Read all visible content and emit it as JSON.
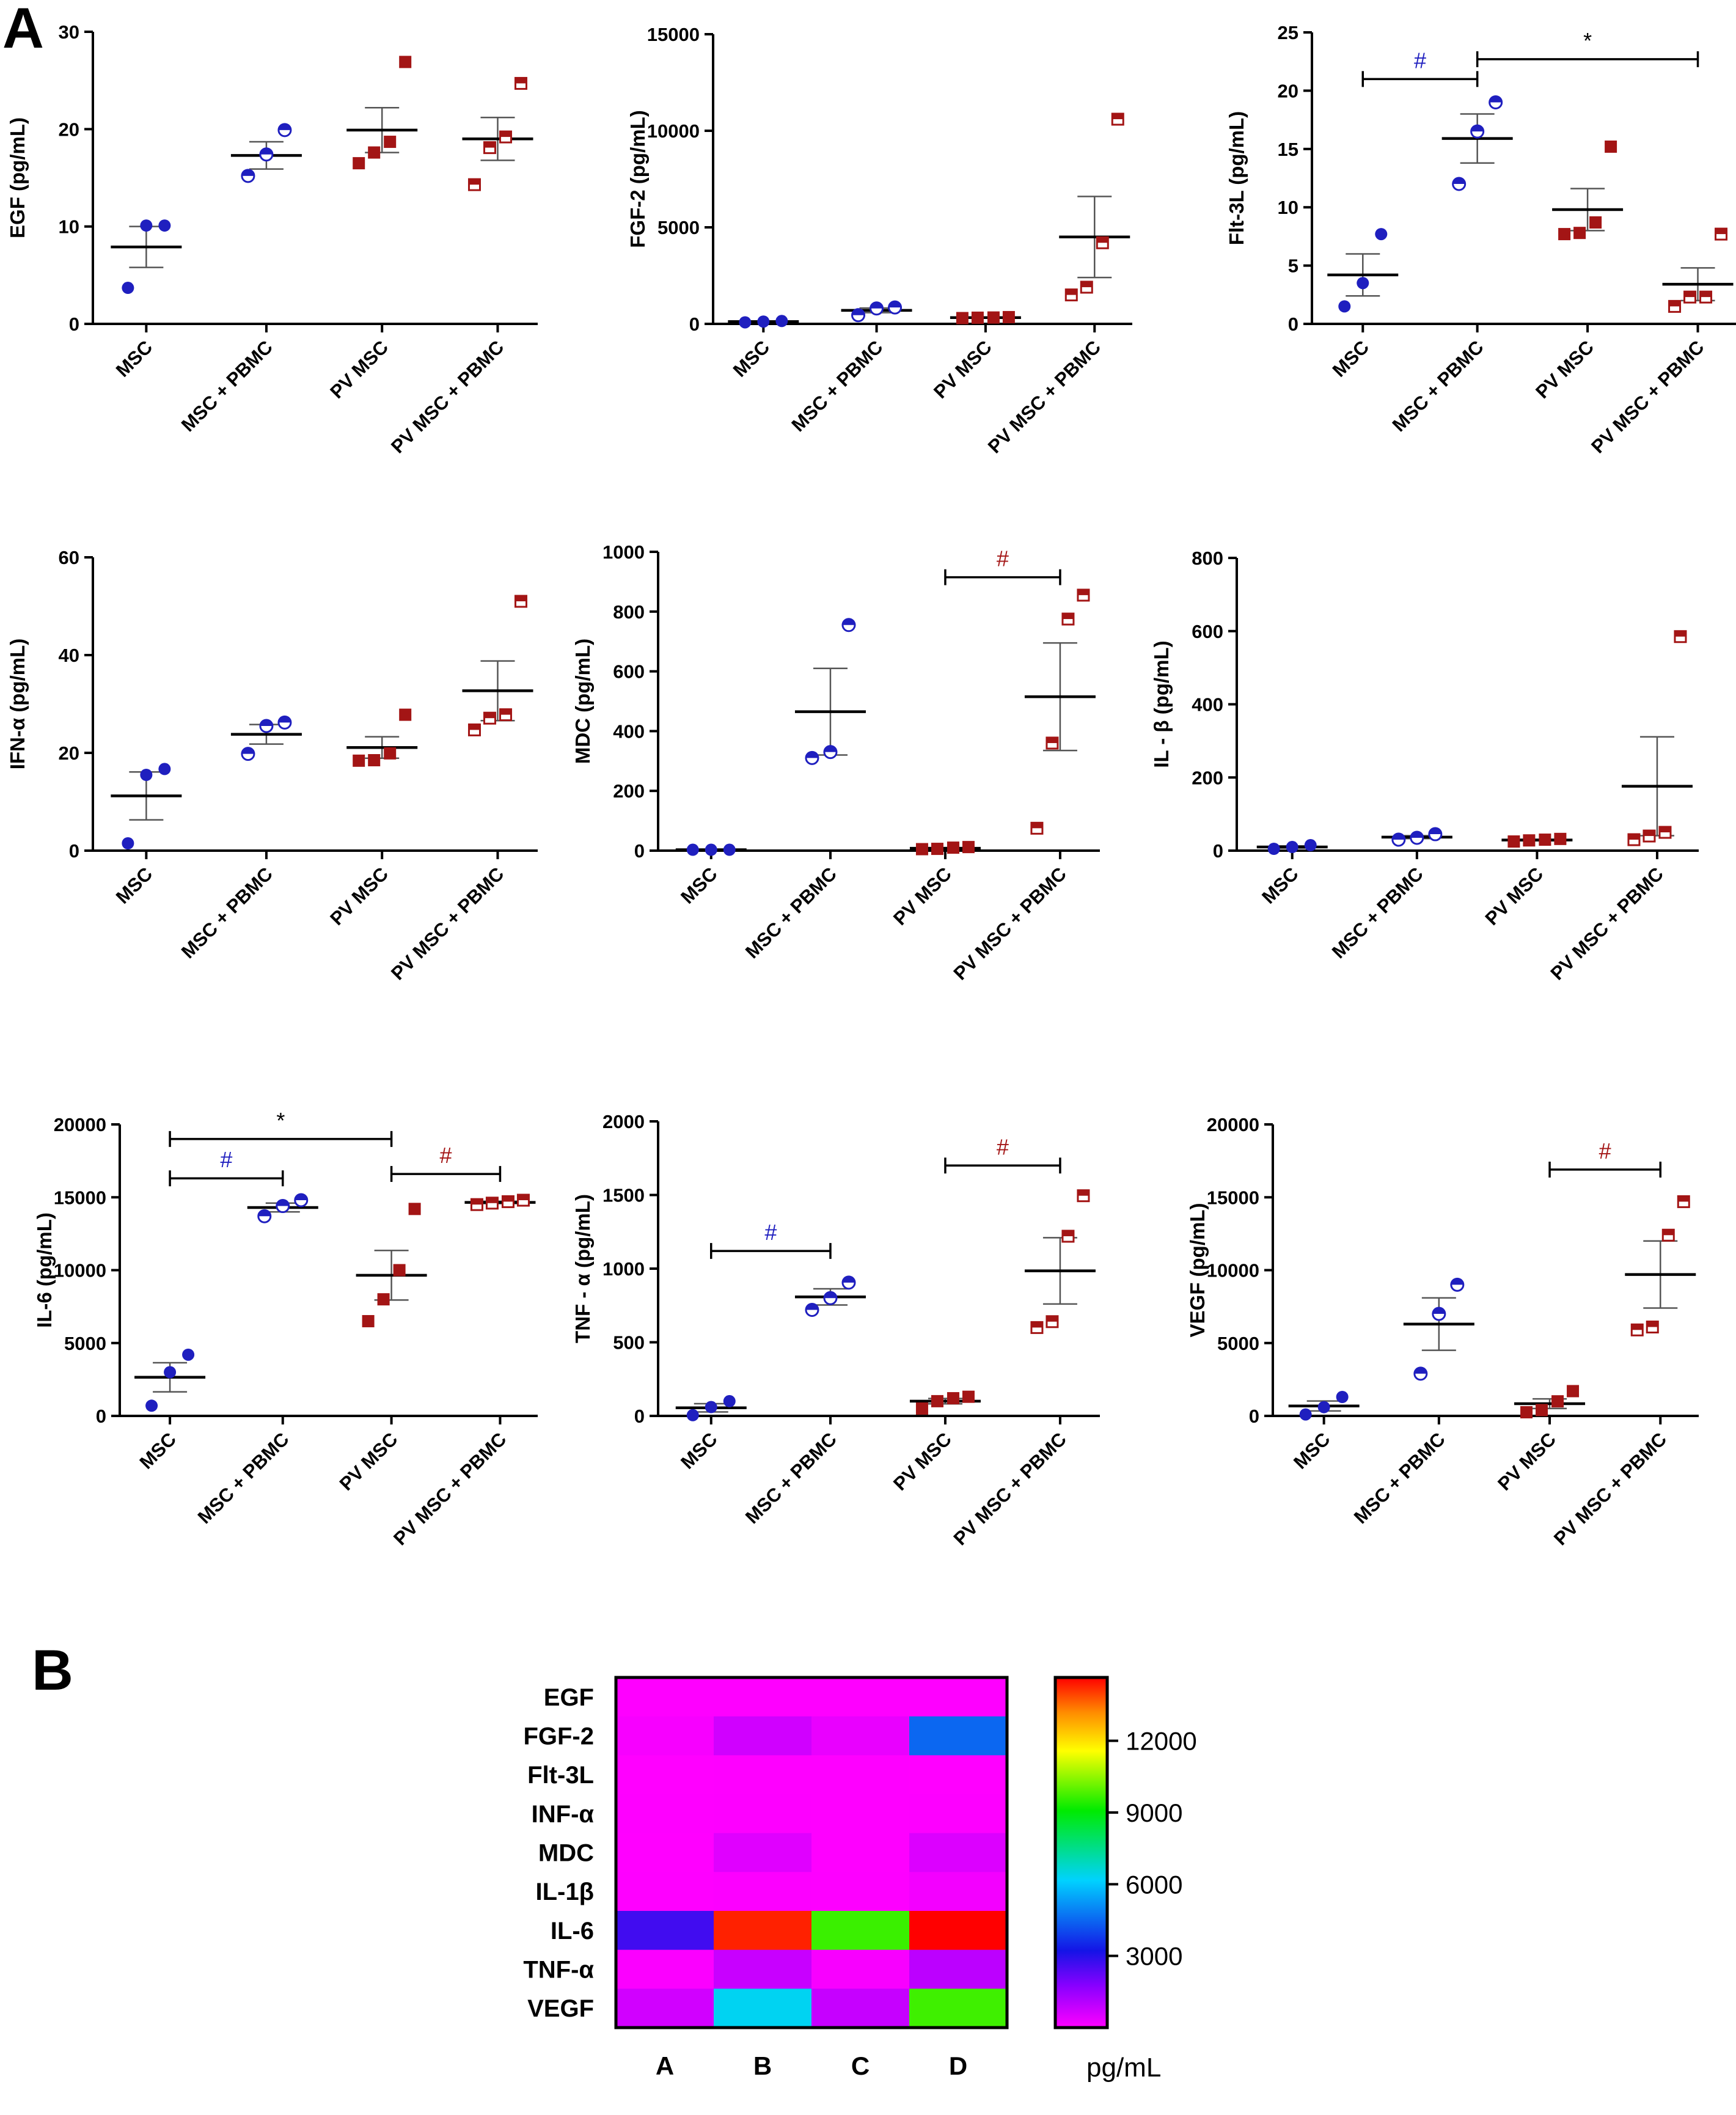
{
  "panel_labels": {
    "a": "A",
    "b": "B"
  },
  "chart_data": [
    {
      "type": "scatter",
      "id": "egf",
      "ylabel": "EGF (pg/mL)",
      "ylim": [
        0,
        30
      ],
      "yticks": [
        0,
        10,
        20,
        30
      ],
      "ytick_labels": [
        "0",
        "10",
        "20",
        "30"
      ],
      "categories": [
        "MSC",
        "MSC + PBMC",
        "PV MSC",
        "PV MSC + PBMC"
      ],
      "series": [
        {
          "name": "MSC",
          "marker": "circle-filled",
          "color": "#1f1fbf",
          "points": [
            3.7,
            10.1,
            10.1
          ],
          "mean": 7.9,
          "sem": 2.1
        },
        {
          "name": "MSC + PBMC",
          "marker": "circle-half",
          "color": "#1f1fbf",
          "points": [
            15.2,
            17.4,
            19.9
          ],
          "mean": 17.3,
          "sem": 1.4
        },
        {
          "name": "PV MSC",
          "marker": "square-filled",
          "color": "#a31515",
          "points": [
            16.5,
            17.6,
            18.7,
            26.9
          ],
          "mean": 19.9,
          "sem": 2.3
        },
        {
          "name": "PV MSC + PBMC",
          "marker": "square-half",
          "color": "#a31515",
          "points": [
            14.3,
            18.1,
            19.2,
            24.7
          ],
          "mean": 19.0,
          "sem": 2.2
        }
      ],
      "annotations": []
    },
    {
      "type": "scatter",
      "id": "fgf2",
      "ylabel": "FGF-2 (pg/mL)",
      "ylim": [
        0,
        15000
      ],
      "yticks": [
        0,
        5000,
        10000,
        15000
      ],
      "ytick_labels": [
        "0",
        "5000",
        "10000",
        "15000"
      ],
      "categories": [
        "MSC",
        "MSC + PBMC",
        "PV MSC",
        "PV MSC + PBMC"
      ],
      "series": [
        {
          "name": "MSC",
          "marker": "circle-filled",
          "color": "#1f1fbf",
          "points": [
            80,
            120,
            150
          ],
          "mean": 120,
          "sem": 25
        },
        {
          "name": "MSC + PBMC",
          "marker": "circle-half",
          "color": "#1f1fbf",
          "points": [
            450,
            800,
            850
          ],
          "mean": 700,
          "sem": 120
        },
        {
          "name": "PV MSC",
          "marker": "square-filled",
          "color": "#a31515",
          "points": [
            300,
            320,
            330,
            350
          ],
          "mean": 325,
          "sem": 15
        },
        {
          "name": "PV MSC + PBMC",
          "marker": "square-half",
          "color": "#a31515",
          "points": [
            1500,
            1900,
            4200,
            10600
          ],
          "mean": 4500,
          "sem": 2100
        }
      ],
      "annotations": []
    },
    {
      "type": "scatter",
      "id": "flt3l",
      "ylabel": "Flt-3L (pg/mL)",
      "ylim": [
        0,
        25
      ],
      "yticks": [
        0,
        5,
        10,
        15,
        20,
        25
      ],
      "ytick_labels": [
        "0",
        "5",
        "10",
        "15",
        "20",
        "25"
      ],
      "categories": [
        "MSC",
        "MSC + PBMC",
        "PV MSC",
        "PV MSC + PBMC"
      ],
      "series": [
        {
          "name": "MSC",
          "marker": "circle-filled",
          "color": "#1f1fbf",
          "points": [
            1.5,
            3.5,
            7.7
          ],
          "mean": 4.2,
          "sem": 1.8
        },
        {
          "name": "MSC + PBMC",
          "marker": "circle-half",
          "color": "#1f1fbf",
          "points": [
            12.0,
            16.5,
            19.0
          ],
          "mean": 15.9,
          "sem": 2.1
        },
        {
          "name": "PV MSC",
          "marker": "square-filled",
          "color": "#a31515",
          "points": [
            7.7,
            7.8,
            8.7,
            15.2
          ],
          "mean": 9.8,
          "sem": 1.8
        },
        {
          "name": "PV MSC + PBMC",
          "marker": "square-half",
          "color": "#a31515",
          "points": [
            1.5,
            2.3,
            2.3,
            7.7
          ],
          "mean": 3.4,
          "sem": 1.4
        }
      ],
      "annotations": [
        {
          "from": 0,
          "to": 1,
          "y": 21,
          "label": "#",
          "color": "#1f1fbf"
        },
        {
          "from": 1,
          "to": 3,
          "y": 22.7,
          "label": "*",
          "color": "#000000"
        }
      ]
    },
    {
      "type": "scatter",
      "id": "ifna",
      "ylabel": "IFN-α (pg/mL)",
      "ylim": [
        0,
        60
      ],
      "yticks": [
        0,
        20,
        40,
        60
      ],
      "ytick_labels": [
        "0",
        "20",
        "40",
        "60"
      ],
      "categories": [
        "MSC",
        "MSC + PBMC",
        "PV MSC",
        "PV MSC + PBMC"
      ],
      "series": [
        {
          "name": "MSC",
          "marker": "circle-filled",
          "color": "#1f1fbf",
          "points": [
            1.5,
            15.5,
            16.7
          ],
          "mean": 11.2,
          "sem": 4.9
        },
        {
          "name": "MSC + PBMC",
          "marker": "circle-half",
          "color": "#1f1fbf",
          "points": [
            19.8,
            25.5,
            26.2
          ],
          "mean": 23.8,
          "sem": 2.0
        },
        {
          "name": "PV MSC",
          "marker": "square-filled",
          "color": "#a31515",
          "points": [
            18.4,
            18.5,
            19.9,
            27.8
          ],
          "mean": 21.1,
          "sem": 2.2
        },
        {
          "name": "PV MSC + PBMC",
          "marker": "square-half",
          "color": "#a31515",
          "points": [
            24.7,
            27.1,
            27.8,
            51.0
          ],
          "mean": 32.7,
          "sem": 6.1
        }
      ],
      "annotations": []
    },
    {
      "type": "scatter",
      "id": "mdc",
      "ylabel": "MDC (pg/mL)",
      "ylim": [
        0,
        1000
      ],
      "yticks": [
        0,
        200,
        400,
        600,
        800,
        1000
      ],
      "ytick_labels": [
        "0",
        "200",
        "400",
        "600",
        "800",
        "1000"
      ],
      "categories": [
        "MSC",
        "MSC + PBMC",
        "PV MSC",
        "PV MSC + PBMC"
      ],
      "series": [
        {
          "name": "MSC",
          "marker": "circle-filled",
          "color": "#1f1fbf",
          "points": [
            3,
            3,
            3
          ],
          "mean": 3,
          "sem": 0
        },
        {
          "name": "MSC + PBMC",
          "marker": "circle-half",
          "color": "#1f1fbf",
          "points": [
            310,
            330,
            755
          ],
          "mean": 465,
          "sem": 145
        },
        {
          "name": "PV MSC",
          "marker": "square-filled",
          "color": "#a31515",
          "points": [
            5,
            6,
            10,
            12
          ],
          "mean": 8,
          "sem": 2
        },
        {
          "name": "PV MSC + PBMC",
          "marker": "square-half",
          "color": "#a31515",
          "points": [
            75,
            360,
            775,
            855
          ],
          "mean": 515,
          "sem": 180
        }
      ],
      "annotations": [
        {
          "from": 2,
          "to": 3,
          "y": 915,
          "label": "#",
          "color": "#a31515"
        }
      ]
    },
    {
      "type": "scatter",
      "id": "il1b",
      "ylabel": "IL - β (pg/mL)",
      "ylim": [
        0,
        800
      ],
      "yticks": [
        0,
        200,
        400,
        600,
        800
      ],
      "ytick_labels": [
        "0",
        "200",
        "400",
        "600",
        "800"
      ],
      "categories": [
        "MSC",
        "MSC + PBMC",
        "PV MSC",
        "PV MSC + PBMC"
      ],
      "series": [
        {
          "name": "MSC",
          "marker": "circle-filled",
          "color": "#1f1fbf",
          "points": [
            5,
            10,
            15
          ],
          "mean": 10,
          "sem": 3
        },
        {
          "name": "MSC + PBMC",
          "marker": "circle-half",
          "color": "#1f1fbf",
          "points": [
            30,
            35,
            45
          ],
          "mean": 37,
          "sem": 4
        },
        {
          "name": "PV MSC",
          "marker": "square-filled",
          "color": "#a31515",
          "points": [
            25,
            28,
            30,
            32
          ],
          "mean": 29,
          "sem": 2
        },
        {
          "name": "PV MSC + PBMC",
          "marker": "square-half",
          "color": "#a31515",
          "points": [
            30,
            40,
            50,
            585
          ],
          "mean": 176,
          "sem": 135
        }
      ],
      "annotations": []
    },
    {
      "type": "scatter",
      "id": "il6",
      "ylabel": "IL-6 (pg/mL)",
      "ylim": [
        0,
        20000
      ],
      "yticks": [
        0,
        5000,
        10000,
        15000,
        20000
      ],
      "ytick_labels": [
        "0",
        "5000",
        "10000",
        "15000",
        "20000"
      ],
      "categories": [
        "MSC",
        "MSC + PBMC",
        "PV MSC",
        "PV MSC + PBMC"
      ],
      "series": [
        {
          "name": "MSC",
          "marker": "circle-filled",
          "color": "#1f1fbf",
          "points": [
            700,
            3000,
            4200
          ],
          "mean": 2650,
          "sem": 1000
        },
        {
          "name": "MSC + PBMC",
          "marker": "circle-half",
          "color": "#1f1fbf",
          "points": [
            13700,
            14400,
            14800
          ],
          "mean": 14300,
          "sem": 300
        },
        {
          "name": "PV MSC",
          "marker": "square-filled",
          "color": "#a31515",
          "points": [
            6500,
            8000,
            10000,
            14200
          ],
          "mean": 9650,
          "sem": 1700
        },
        {
          "name": "PV MSC + PBMC",
          "marker": "square-half",
          "color": "#a31515",
          "points": [
            14500,
            14600,
            14700,
            14800
          ],
          "mean": 14650,
          "sem": 80
        }
      ],
      "annotations": [
        {
          "from": 0,
          "to": 2,
          "y": 19000,
          "label": "*",
          "color": "#000000"
        },
        {
          "from": 0,
          "to": 1,
          "y": 16300,
          "label": "#",
          "color": "#1f1fbf"
        },
        {
          "from": 2,
          "to": 3,
          "y": 16600,
          "label": "#",
          "color": "#a31515"
        }
      ]
    },
    {
      "type": "scatter",
      "id": "tnfa",
      "ylabel": "TNF - α (pg/mL)",
      "ylim": [
        0,
        2000
      ],
      "yticks": [
        0,
        500,
        1000,
        1500,
        2000
      ],
      "ytick_labels": [
        "0",
        "500",
        "1000",
        "1500",
        "2000"
      ],
      "categories": [
        "MSC",
        "MSC + PBMC",
        "PV MSC",
        "PV MSC + PBMC"
      ],
      "series": [
        {
          "name": "MSC",
          "marker": "circle-filled",
          "color": "#1f1fbf",
          "points": [
            5,
            60,
            100
          ],
          "mean": 55,
          "sem": 28
        },
        {
          "name": "MSC + PBMC",
          "marker": "circle-half",
          "color": "#1f1fbf",
          "points": [
            720,
            800,
            905
          ],
          "mean": 808,
          "sem": 55
        },
        {
          "name": "PV MSC",
          "marker": "square-filled",
          "color": "#a31515",
          "points": [
            50,
            100,
            120,
            130
          ],
          "mean": 100,
          "sem": 18
        },
        {
          "name": "PV MSC + PBMC",
          "marker": "square-half",
          "color": "#a31515",
          "points": [
            600,
            640,
            1220,
            1495
          ],
          "mean": 985,
          "sem": 225
        }
      ],
      "annotations": [
        {
          "from": 0,
          "to": 1,
          "y": 1120,
          "label": "#",
          "color": "#1f1fbf"
        },
        {
          "from": 2,
          "to": 3,
          "y": 1700,
          "label": "#",
          "color": "#a31515"
        }
      ]
    },
    {
      "type": "scatter",
      "id": "vegf",
      "ylabel": "VEGF (pg/mL)",
      "ylim": [
        0,
        20000
      ],
      "yticks": [
        0,
        5000,
        10000,
        15000,
        20000
      ],
      "ytick_labels": [
        "0",
        "5000",
        "10000",
        "15000",
        "20000"
      ],
      "categories": [
        "MSC",
        "MSC + PBMC",
        "PV MSC",
        "PV MSC + PBMC"
      ],
      "series": [
        {
          "name": "MSC",
          "marker": "circle-filled",
          "color": "#1f1fbf",
          "points": [
            100,
            600,
            1300
          ],
          "mean": 680,
          "sem": 340
        },
        {
          "name": "MSC + PBMC",
          "marker": "circle-half",
          "color": "#1f1fbf",
          "points": [
            2900,
            7000,
            9000
          ],
          "mean": 6300,
          "sem": 1800
        },
        {
          "name": "PV MSC",
          "marker": "square-filled",
          "color": "#a31515",
          "points": [
            250,
            400,
            1000,
            1700
          ],
          "mean": 840,
          "sem": 330
        },
        {
          "name": "PV MSC + PBMC",
          "marker": "square-half",
          "color": "#a31515",
          "points": [
            5900,
            6100,
            12400,
            14700
          ],
          "mean": 9700,
          "sem": 2300
        }
      ],
      "annotations": [
        {
          "from": 2,
          "to": 3,
          "y": 16900,
          "label": "#",
          "color": "#a31515"
        }
      ]
    },
    {
      "type": "heatmap",
      "id": "heatmap",
      "columns": [
        "A",
        "B",
        "C",
        "D"
      ],
      "rows": [
        "EGF",
        "FGF-2",
        "Flt-3L",
        "INF-α",
        "MDC",
        "IL-1β",
        "IL-6",
        "TNF-α",
        "VEGF"
      ],
      "values": [
        [
          8,
          17,
          20,
          19
        ],
        [
          120,
          700,
          325,
          4500
        ],
        [
          4,
          16,
          10,
          3
        ],
        [
          11,
          24,
          21,
          33
        ],
        [
          3,
          465,
          8,
          515
        ],
        [
          10,
          37,
          29,
          176
        ],
        [
          2650,
          14300,
          9650,
          14650
        ],
        [
          55,
          808,
          100,
          985
        ],
        [
          680,
          6300,
          840,
          9700
        ]
      ],
      "colorbar": {
        "min": 0,
        "max": 14650,
        "ticks": [
          3000,
          6000,
          9000,
          12000
        ],
        "tick_labels": [
          "3000",
          "6000",
          "9000",
          "12000"
        ],
        "label": "pg/mL"
      }
    }
  ]
}
